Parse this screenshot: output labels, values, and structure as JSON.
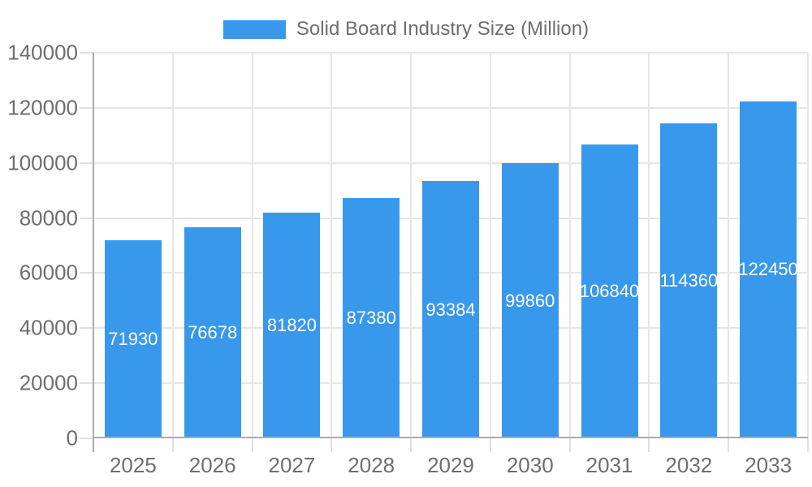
{
  "legend": {
    "label": "Solid Board Industry Size (Million)"
  },
  "chart_data": {
    "type": "bar",
    "title": "Solid Board Industry Size (Million)",
    "legend_position": "top",
    "grid": true,
    "categories": [
      "2025",
      "2026",
      "2027",
      "2028",
      "2029",
      "2030",
      "2031",
      "2032",
      "2033"
    ],
    "series": [
      {
        "name": "Solid Board Industry Size (Million)",
        "values": [
          71930,
          76678,
          81820,
          87380,
          93384,
          99860,
          106840,
          114360,
          122450
        ]
      }
    ],
    "value_labels": [
      "71930",
      "76678",
      "81820",
      "87380",
      "93384",
      "99860",
      "106840",
      "114360",
      "122450"
    ],
    "xlabel": "",
    "ylabel": "",
    "ylim": [
      0,
      140000
    ],
    "y_ticks": [
      0,
      20000,
      40000,
      60000,
      80000,
      100000,
      120000,
      140000
    ],
    "y_tick_labels": [
      "0",
      "20000",
      "40000",
      "60000",
      "80000",
      "100000",
      "120000",
      "140000"
    ],
    "colors": {
      "bar": "#3898ec",
      "bar_label": "#ffffff",
      "axis_text": "#6e6e6e",
      "grid_line": "#e6e6e6",
      "tick_line": "#e0e0e0",
      "axis_line": "#ababab",
      "background": "#ffffff"
    }
  }
}
